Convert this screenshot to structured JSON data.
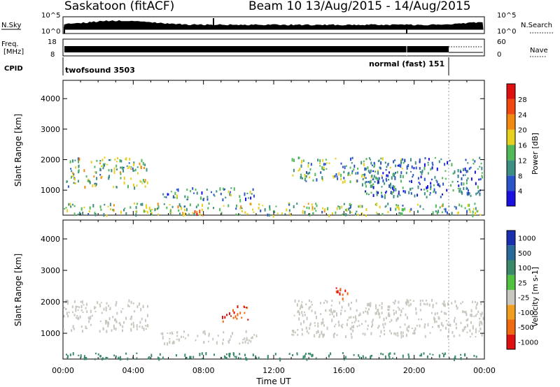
{
  "header": {
    "station": "Saskatoon (fitACF)",
    "beam_info": "Beam 10  13/Aug/2015 - 14/Aug/2015"
  },
  "strips": {
    "nsky_label": "N.Sky",
    "nsky_ticks": [
      "10^5",
      "10^0"
    ],
    "nsearch_label": "N.Search",
    "nsearch_ticks": [
      "10^5",
      "10^0"
    ],
    "freq_label_1": "Freq.",
    "freq_label_2": "[MHz]",
    "freq_ticks": [
      "18",
      "8"
    ],
    "nave_label": "Nave",
    "nave_ticks": [
      "60",
      "0"
    ],
    "cpid_label": "CPID",
    "cpid_mode_1": "twofsound 3503",
    "cpid_mode_2": "normal (fast) 151"
  },
  "axes": {
    "ylabel": "Slant Range [km]",
    "xlabel": "Time UT",
    "y_ticks": [
      "4000",
      "3000",
      "2000",
      "1000"
    ],
    "x_ticks": [
      "00:00",
      "04:00",
      "08:00",
      "12:00",
      "16:00",
      "20:00",
      "00:00"
    ]
  },
  "power_colorbar": {
    "label": "Power [dB]",
    "ticks": [
      "28",
      "24",
      "20",
      "16",
      "12",
      "8",
      "4"
    ],
    "colors": [
      "#1a10e0",
      "#2a55c8",
      "#3e8e84",
      "#52b85a",
      "#e8d020",
      "#f08a10",
      "#f04810",
      "#e01010"
    ]
  },
  "velocity_colorbar": {
    "label": "Velocity [m s-1]",
    "ticks": [
      "1000",
      "500",
      "100",
      "25",
      "-25",
      "-100",
      "-500",
      "-1000"
    ],
    "colors": [
      "#1a2eb0",
      "#2a6a9a",
      "#3a8a6a",
      "#52c040",
      "#c8c8c0",
      "#f0a020",
      "#f06a10",
      "#e01010"
    ]
  },
  "chart_data": [
    {
      "type": "heatmap",
      "title": "Saskatoon (fitACF)",
      "subtitle": "Beam 10  13/Aug/2015 - 14/Aug/2015",
      "quantity": "Power [dB]",
      "xlabel": "Time UT",
      "ylabel": "Slant Range [km]",
      "x_range_hours": [
        0,
        24
      ],
      "y_range_km": [
        180,
        4600
      ],
      "color_range_db": [
        0,
        32
      ],
      "echo_regions": [
        {
          "t_start": 0.0,
          "t_end": 24.0,
          "r_start": 200,
          "r_end": 600,
          "power_db": 14
        },
        {
          "t_start": 0.0,
          "t_end": 4.8,
          "r_start": 1100,
          "r_end": 2100,
          "power_db": 14
        },
        {
          "t_start": 5.5,
          "t_end": 11.0,
          "r_start": 700,
          "r_end": 1100,
          "power_db": 10
        },
        {
          "t_start": 7.0,
          "t_end": 8.0,
          "r_start": 200,
          "r_end": 400,
          "power_db": 28
        },
        {
          "t_start": 13.0,
          "t_end": 19.5,
          "r_start": 1300,
          "r_end": 2100,
          "power_db": 12
        },
        {
          "t_start": 17.0,
          "t_end": 24.0,
          "r_start": 800,
          "r_end": 2100,
          "power_db": 8
        }
      ]
    },
    {
      "type": "heatmap",
      "quantity": "Velocity [m s-1]",
      "xlabel": "Time UT",
      "ylabel": "Slant Range [km]",
      "x_range_hours": [
        0,
        24
      ],
      "y_range_km": [
        180,
        4600
      ],
      "color_levels": [
        1000,
        500,
        100,
        25,
        -25,
        -100,
        -500,
        -1000
      ],
      "echo_regions": [
        {
          "t_start": 0.0,
          "t_end": 4.8,
          "r_start": 1100,
          "r_end": 2100,
          "velocity": 0
        },
        {
          "t_start": 5.5,
          "t_end": 11.0,
          "r_start": 700,
          "r_end": 1100,
          "velocity": 0
        },
        {
          "t_start": 0.0,
          "t_end": 24.0,
          "r_start": 200,
          "r_end": 400,
          "velocity": 150
        },
        {
          "t_start": 9.0,
          "t_end": 10.5,
          "r_start": 1400,
          "r_end": 1900,
          "velocity": -500
        },
        {
          "t_start": 15.5,
          "t_end": 16.3,
          "r_start": 2100,
          "r_end": 2600,
          "velocity": -500
        },
        {
          "t_start": 13.0,
          "t_end": 24.0,
          "r_start": 900,
          "r_end": 2100,
          "velocity": 0
        }
      ]
    }
  ]
}
